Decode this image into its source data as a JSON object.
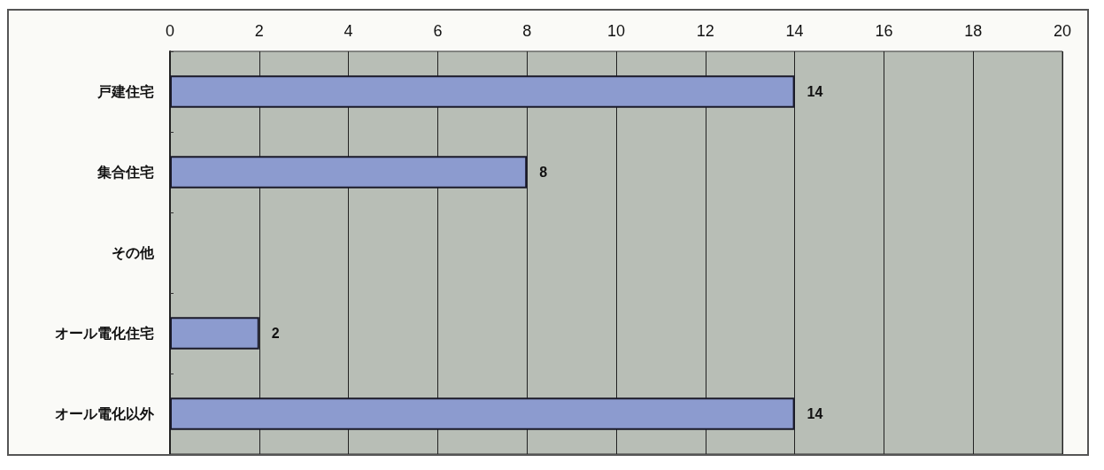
{
  "chart_data": {
    "type": "bar",
    "orientation": "horizontal",
    "categories": [
      "戸建住宅",
      "集合住宅",
      "その他",
      "オール電化住宅",
      "オール電化以外"
    ],
    "values": [
      14,
      8,
      0,
      2,
      14
    ],
    "value_labels": [
      "14",
      "8",
      null,
      "2",
      "14"
    ],
    "color": "#8c9bcf",
    "xlim": [
      0,
      20
    ],
    "xticks": [
      0,
      2,
      4,
      6,
      8,
      10,
      12,
      14,
      16,
      18,
      20
    ],
    "grid": "x"
  }
}
